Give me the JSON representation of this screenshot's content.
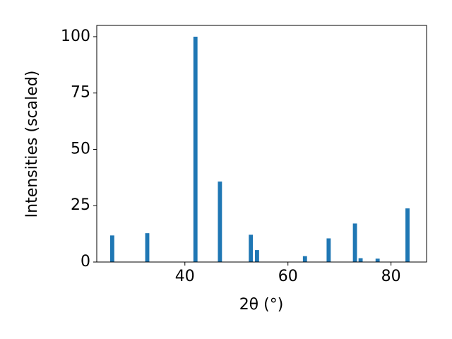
{
  "chart_data": {
    "type": "bar",
    "x": [
      25.9,
      32.7,
      42.05,
      46.8,
      52.8,
      54.0,
      63.3,
      67.9,
      73.0,
      74.1,
      77.4,
      83.2
    ],
    "values": [
      11.8,
      12.8,
      100,
      35.7,
      12.1,
      5.3,
      2.6,
      10.5,
      17.1,
      1.7,
      1.5,
      23.8
    ],
    "color": "#1f77b4",
    "xlabel": "2θ (°)",
    "ylabel": "Intensities (scaled)",
    "xlim": [
      22.9,
      86.9
    ],
    "ylim": [
      0,
      105
    ],
    "xticks": [
      40,
      60,
      80
    ],
    "yticks": [
      0,
      25,
      50,
      75,
      100
    ]
  }
}
